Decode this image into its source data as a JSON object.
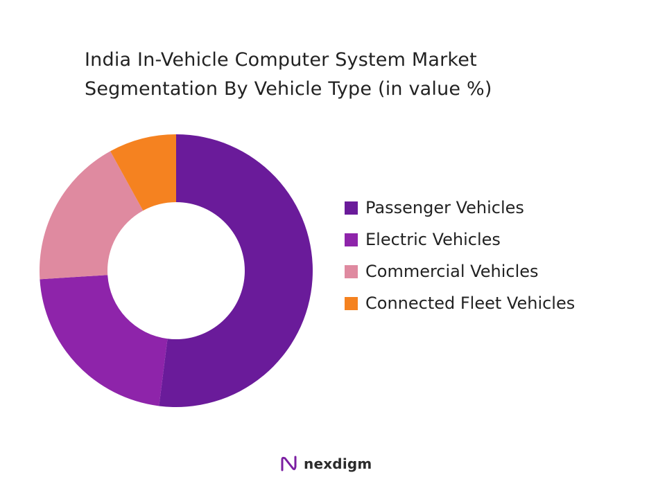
{
  "chart_data": {
    "type": "pie",
    "title_lines": [
      "India In-Vehicle Computer System Market",
      "Segmentation By Vehicle Type (in value %)"
    ],
    "categories": [
      "Passenger Vehicles",
      "Electric Vehicles",
      "Commercial Vehicles",
      "Connected Fleet Vehicles"
    ],
    "values": [
      52,
      22,
      18,
      8
    ],
    "unit": "%",
    "colors": [
      "#6a1b9a",
      "#8e24aa",
      "#df8aa0",
      "#f58220"
    ],
    "donut": true,
    "start_angle": "12 o'clock",
    "direction": "clockwise",
    "legend_position": "right"
  },
  "branding": {
    "name": "nexdigm",
    "logo_icon": "nexdigm-logo-icon"
  }
}
